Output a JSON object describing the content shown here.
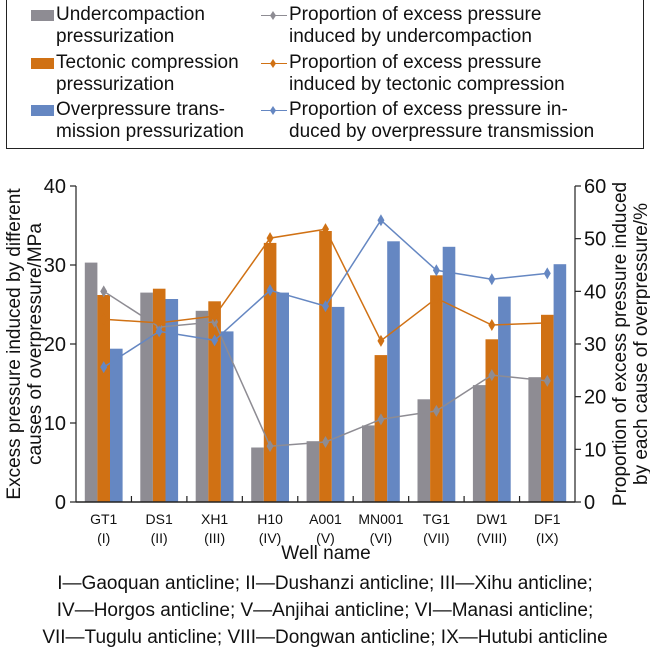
{
  "chart_data": {
    "type": "bar",
    "title": "",
    "xlabel": "Well name",
    "ylabel": "Excess pressure induced by different causes of overpressure/MPa",
    "ylabel_lines": [
      "Excess pressure induced by different",
      "causes of overpressure/MPa"
    ],
    "y2label": "Proportion of excess pressure induced by each cause of overpressure/%",
    "y2label_lines": [
      "Proportion of excess pressure induced",
      "by each cause of overpressure/%"
    ],
    "ylim": [
      0,
      40
    ],
    "y2lim": [
      0,
      60
    ],
    "yticks": [
      "0",
      "10",
      "20",
      "30",
      "40"
    ],
    "y2ticks": [
      "0",
      "10",
      "20",
      "30",
      "40",
      "50",
      "60"
    ],
    "grid": false,
    "legend_position": "top",
    "categories": [
      "GT1",
      "DS1",
      "XH1",
      "H10",
      "A001",
      "MN001",
      "TG1",
      "DW1",
      "DF1"
    ],
    "category_sublabels": [
      "(I)",
      "(II)",
      "(III)",
      "(IV)",
      "(V)",
      "(VI)",
      "(VII)",
      "(VIII)",
      "(IX)"
    ],
    "series": [
      {
        "name": "Undercompaction pressurization",
        "type": "bar",
        "axis": "left",
        "color": "#8e8c93",
        "values": [
          30.3,
          26.5,
          24.2,
          6.9,
          7.7,
          9.7,
          13.0,
          14.8,
          15.8
        ]
      },
      {
        "name": "Tectonic compression pressurization",
        "type": "bar",
        "axis": "left",
        "color": "#d07114",
        "values": [
          26.2,
          27.0,
          25.4,
          32.8,
          34.3,
          18.6,
          28.7,
          20.6,
          23.7
        ]
      },
      {
        "name": "Overpressure transmission pressurization",
        "type": "bar",
        "axis": "left",
        "color": "#6587c2",
        "values": [
          19.4,
          25.7,
          21.6,
          26.5,
          24.7,
          33.0,
          32.3,
          26.0,
          30.1
        ]
      },
      {
        "name": "Proportion of excess pressure induced by undercompaction",
        "type": "line",
        "axis": "right",
        "color": "#8e8c93",
        "values": [
          40.0,
          33.2,
          34.2,
          10.6,
          11.4,
          15.7,
          17.3,
          24.1,
          23.0
        ]
      },
      {
        "name": "Proportion of excess pressure induced by tectonic compression",
        "type": "line",
        "axis": "right",
        "color": "#d07114",
        "values": [
          34.7,
          34.0,
          35.3,
          50.1,
          51.8,
          30.6,
          38.7,
          33.6,
          34.0
        ]
      },
      {
        "name": "Proportion of excess pressure induced by overpressure transmission",
        "type": "line",
        "axis": "right",
        "color": "#6587c2",
        "values": [
          25.6,
          32.4,
          30.7,
          40.2,
          37.2,
          53.5,
          44.0,
          42.3,
          43.4
        ]
      }
    ]
  },
  "legend": {
    "items": [
      {
        "lines": [
          "Undercompaction",
          "pressurization"
        ],
        "kind": "bar",
        "color": "#8e8c93"
      },
      {
        "lines": [
          "Proportion of excess pressure",
          "induced by undercompaction"
        ],
        "kind": "line",
        "color": "#8e8c93"
      },
      {
        "lines": [
          "Tectonic compression",
          "pressurization"
        ],
        "kind": "bar",
        "color": "#d07114"
      },
      {
        "lines": [
          "Proportion of excess pressure",
          "induced by tectonic compression"
        ],
        "kind": "line",
        "color": "#d07114"
      },
      {
        "lines": [
          "Overpressure trans-",
          "mission pressurization"
        ],
        "kind": "bar",
        "color": "#6587c2"
      },
      {
        "lines": [
          "Proportion of excess pressure in-",
          "duced by overpressure transmission"
        ],
        "kind": "line",
        "color": "#6587c2"
      }
    ]
  },
  "footnote": {
    "lines": [
      "I—Gaoquan anticline; II—Dushanzi anticline; III—Xihu anticline;",
      "IV—Horgos anticline; V—Anjihai anticline; VI—Manasi anticline;",
      "VII—Tugulu anticline; VIII—Dongwan anticline; IX—Hutubi anticline"
    ]
  }
}
